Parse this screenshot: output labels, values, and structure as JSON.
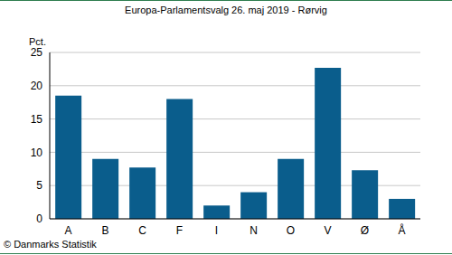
{
  "chart_data": {
    "type": "bar",
    "title": "Europa-Parlamentsvalg 26. maj 2019 - Rørvig",
    "y_label": "Pct.",
    "source": "© Danmarks Statistik",
    "categories": [
      "A",
      "B",
      "C",
      "F",
      "I",
      "N",
      "O",
      "V",
      "Ø",
      "Å"
    ],
    "values": [
      18.5,
      9,
      7.7,
      18,
      2,
      4,
      9,
      22.7,
      7.3,
      3
    ],
    "color": "#0a5d8c",
    "ylim": [
      0,
      25
    ],
    "yticks": [
      0,
      5,
      10,
      15,
      20,
      25
    ],
    "grid": true
  }
}
